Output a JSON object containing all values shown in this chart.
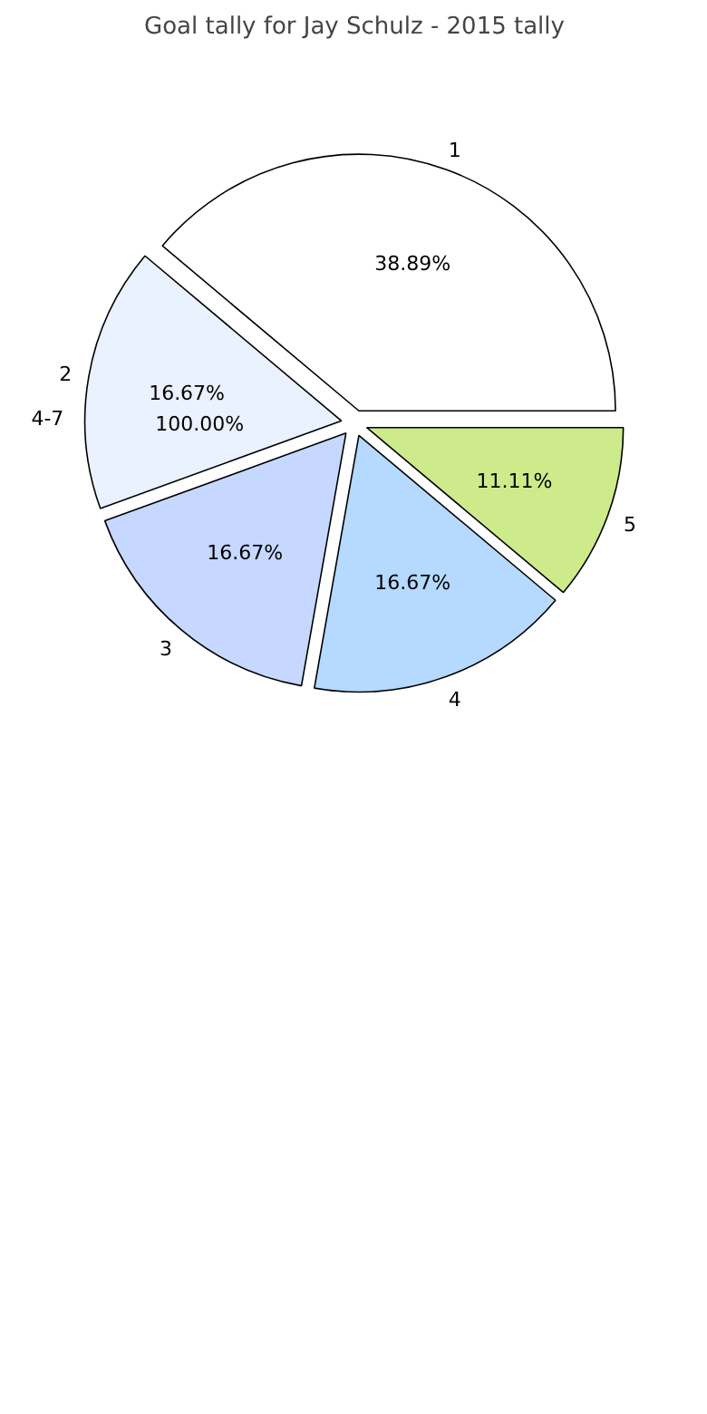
{
  "chart_data": {
    "type": "pie",
    "title": "Goal tally for Jay Schulz - 2015 tally",
    "categories": [
      "1",
      "2",
      "3",
      "4",
      "5"
    ],
    "values": [
      38.89,
      16.67,
      16.67,
      16.67,
      11.11
    ],
    "value_labels": [
      "38.89%",
      "16.67%",
      "16.67%",
      "16.67%",
      "11.11%"
    ],
    "colors": [
      "#ffffff",
      "#eaf1ff",
      "#c6d8ff",
      "#b5d9ff",
      "#cdeb8b"
    ],
    "annotations": [
      "4-7",
      "100.00%"
    ]
  }
}
